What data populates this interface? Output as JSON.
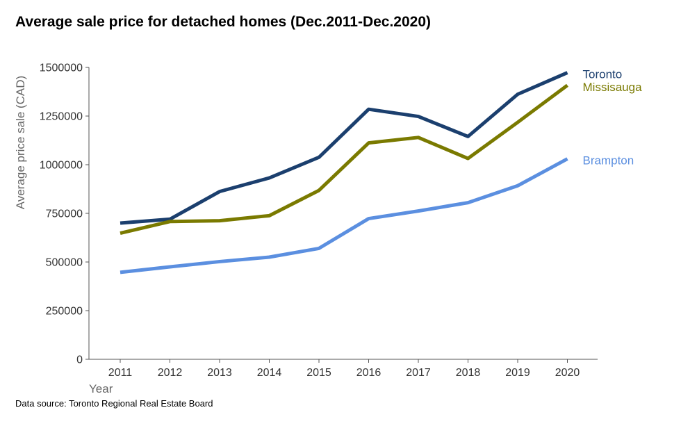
{
  "chart_data": {
    "type": "line",
    "title": "Average sale price for detached homes (Dec.2011-Dec.2020)",
    "xlabel": "Year",
    "ylabel": "Average price sale (CAD)",
    "x": [
      2011,
      2012,
      2013,
      2014,
      2015,
      2016,
      2017,
      2018,
      2019,
      2020
    ],
    "ylim": [
      0,
      1500000
    ],
    "yticks": [
      0,
      250000,
      500000,
      750000,
      1000000,
      1250000,
      1500000
    ],
    "grid": false,
    "legend": "direct labels at right end of lines",
    "series": [
      {
        "name": "Toronto",
        "color": "#1b3f6e",
        "values": [
          700000,
          720000,
          862000,
          932000,
          1038000,
          1285000,
          1248000,
          1145000,
          1362000,
          1473000
        ]
      },
      {
        "name": "Missisauga",
        "color": "#7a7a00",
        "values": [
          648000,
          708000,
          712000,
          738000,
          868000,
          1112000,
          1140000,
          1032000,
          1218000,
          1408000
        ]
      },
      {
        "name": "Brampton",
        "color": "#5b8fe0",
        "values": [
          447000,
          475000,
          502000,
          525000,
          570000,
          723000,
          762000,
          805000,
          892000,
          1030000
        ]
      }
    ],
    "source": "Data source: Toronto Regional Real Estate Board"
  }
}
